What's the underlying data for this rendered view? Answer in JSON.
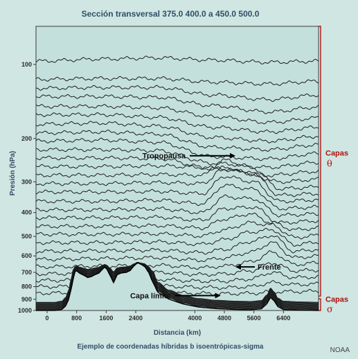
{
  "chart_data": {
    "type": "line",
    "title": "Sección transversal 375.0 400.0 a 450.0 500.0",
    "xlabel": "Distancia (km)",
    "ylabel": "Presión (hPa)",
    "xlim": [
      -300,
      7350
    ],
    "ylim": [
      1000,
      70
    ],
    "y_scale": "log",
    "x_ticks": [
      0,
      800,
      1600,
      2400,
      4000,
      4800,
      5600,
      6400
    ],
    "y_ticks": [
      100,
      200,
      300,
      400,
      500,
      600,
      700,
      800,
      900,
      1000
    ],
    "grid": false,
    "caption": "Ejemplo de coordenadas híbridas b isoentrópicas-sigma",
    "credit": "NOAA",
    "annotations": [
      {
        "text": "Tropopausa",
        "x": 3750,
        "y": 235
      },
      {
        "text": "Frente",
        "x": 5700,
        "y": 665
      },
      {
        "text": "Capa límite",
        "x": 3350,
        "y": 870
      }
    ],
    "layer_brackets": [
      {
        "label": "Capas",
        "symbol": "θ",
        "p_top": 70,
        "p_bottom": 885
      },
      {
        "label": "Capas",
        "symbol": "σ",
        "p_top": 885,
        "p_bottom": 1000
      }
    ],
    "series": [
      {
        "x": [
          -300,
          1500,
          3000,
          4500,
          6000,
          7350
        ],
        "values": [
          97,
          95,
          94,
          96,
          98,
          97
        ]
      },
      {
        "x": [
          -300,
          1500,
          3000,
          4500,
          6000,
          7350
        ],
        "values": [
          115,
          114,
          114,
          118,
          120,
          117
        ]
      },
      {
        "x": [
          -300,
          1500,
          3000,
          4500,
          6000,
          7350
        ],
        "values": [
          125,
          124,
          124,
          133,
          139,
          133
        ]
      },
      {
        "x": [
          -300,
          1500,
          3000,
          4500,
          6000,
          7350
        ],
        "values": [
          135,
          135,
          136,
          147,
          156,
          149
        ]
      },
      {
        "x": [
          -300,
          1500,
          3000,
          4500,
          6000,
          7350
        ],
        "values": [
          148,
          148,
          150,
          163,
          172,
          165
        ]
      },
      {
        "x": [
          -300,
          1500,
          3000,
          4500,
          6000,
          7350
        ],
        "values": [
          160,
          160,
          164,
          180,
          188,
          180
        ]
      },
      {
        "x": [
          -300,
          1500,
          3000,
          4500,
          6000,
          7350
        ],
        "values": [
          175,
          173,
          178,
          198,
          205,
          196
        ]
      },
      {
        "x": [
          -300,
          1500,
          3000,
          4500,
          6000,
          7350
        ],
        "values": [
          190,
          188,
          192,
          217,
          222,
          212
        ]
      },
      {
        "x": [
          -300,
          1500,
          3000,
          4500,
          6000,
          7350
        ],
        "values": [
          205,
          203,
          207,
          237,
          242,
          230
        ]
      },
      {
        "x": [
          -300,
          1500,
          3000,
          4500,
          6000,
          7350
        ],
        "values": [
          222,
          222,
          224,
          252,
          262,
          250
        ]
      },
      {
        "x": [
          -300,
          1500,
          3000,
          4500,
          6000,
          7350
        ],
        "values": [
          240,
          240,
          241,
          265,
          282,
          272
        ]
      },
      {
        "x": [
          -300,
          1500,
          3000,
          4200,
          5200,
          6300,
          7350
        ],
        "values": [
          260,
          260,
          258,
          262,
          270,
          300,
          293
        ]
      },
      {
        "x": [
          -300,
          1500,
          3000,
          4200,
          4800,
          5600,
          6300,
          7350
        ],
        "values": [
          282,
          282,
          280,
          282,
          245,
          265,
          320,
          315
        ]
      },
      {
        "x": [
          -300,
          1500,
          3000,
          4200,
          4800,
          5600,
          6300,
          7350
        ],
        "values": [
          305,
          305,
          302,
          305,
          262,
          280,
          340,
          335
        ]
      },
      {
        "x": [
          -300,
          1500,
          3000,
          4200,
          4800,
          5600,
          6300,
          7350
        ],
        "values": [
          330,
          330,
          328,
          335,
          285,
          300,
          360,
          355
        ]
      },
      {
        "x": [
          -300,
          1500,
          3000,
          4200,
          4800,
          5600,
          6300,
          7350
        ],
        "values": [
          360,
          360,
          356,
          368,
          310,
          322,
          385,
          380
        ]
      },
      {
        "x": [
          -300,
          1500,
          3000,
          4200,
          4800,
          5600,
          6300,
          7350
        ],
        "values": [
          390,
          390,
          386,
          400,
          345,
          352,
          410,
          405
        ]
      },
      {
        "x": [
          -300,
          1500,
          3000,
          4200,
          4800,
          5600,
          6300,
          7350
        ],
        "values": [
          420,
          420,
          418,
          430,
          385,
          380,
          440,
          432
        ]
      },
      {
        "x": [
          -300,
          1500,
          3000,
          4200,
          4800,
          5500,
          6100,
          6700,
          7350
        ],
        "values": [
          455,
          455,
          452,
          462,
          425,
          405,
          440,
          470,
          462
        ]
      },
      {
        "x": [
          -300,
          1500,
          3000,
          4200,
          4800,
          5500,
          6100,
          6700,
          7350
        ],
        "values": [
          490,
          490,
          488,
          498,
          470,
          440,
          450,
          505,
          495
        ]
      },
      {
        "x": [
          -300,
          1500,
          3000,
          4200,
          4800,
          5500,
          6100,
          6700,
          7350
        ],
        "values": [
          530,
          530,
          526,
          538,
          515,
          480,
          470,
          540,
          528
        ]
      },
      {
        "x": [
          -300,
          1500,
          3000,
          4200,
          4800,
          5500,
          6100,
          6700,
          7350
        ],
        "values": [
          575,
          572,
          568,
          582,
          565,
          525,
          495,
          575,
          565
        ]
      },
      {
        "x": [
          -300,
          1500,
          3000,
          4200,
          4800,
          5500,
          6100,
          6700,
          7350
        ],
        "values": [
          620,
          615,
          610,
          625,
          612,
          580,
          530,
          610,
          600
        ]
      },
      {
        "x": [
          -300,
          1500,
          3000,
          4200,
          4800,
          5500,
          6100,
          6700,
          7350
        ],
        "values": [
          665,
          660,
          655,
          670,
          660,
          635,
          580,
          650,
          640
        ]
      },
      {
        "x": [
          -300,
          1500,
          3000,
          4200,
          4800,
          5500,
          6100,
          6700,
          7350
        ],
        "values": [
          710,
          705,
          700,
          715,
          710,
          690,
          640,
          690,
          685
        ]
      },
      {
        "x": [
          -300,
          1500,
          3000,
          4200,
          4800,
          5500,
          6100,
          6700,
          7350
        ],
        "values": [
          755,
          752,
          748,
          760,
          760,
          745,
          700,
          735,
          730
        ]
      },
      {
        "x": [
          -300,
          1500,
          3000,
          4200,
          4800,
          5500,
          6100,
          6700,
          7350
        ],
        "values": [
          800,
          798,
          795,
          805,
          808,
          800,
          770,
          785,
          780
        ]
      },
      {
        "x": [
          -300,
          1500,
          3000,
          4200,
          4800,
          5500,
          6100,
          6700,
          7350
        ],
        "values": [
          850,
          848,
          845,
          852,
          855,
          852,
          840,
          838,
          835
        ]
      }
    ],
    "terrain": {
      "x": [
        -300,
        200,
        400,
        500,
        580,
        650,
        720,
        760,
        800,
        880,
        1000,
        1100,
        1200,
        1300,
        1400,
        1500,
        1560,
        1620,
        1700,
        1800,
        1900,
        2000,
        2150,
        2250,
        2350,
        2450,
        2550,
        2650,
        2750,
        2850,
        3000,
        3300,
        3700,
        4100,
        4600,
        5100,
        5500,
        5800,
        5950,
        6050,
        6150,
        6250,
        6400,
        6800,
        7350
      ],
      "values": [
        1000,
        1000,
        990,
        960,
        905,
        820,
        730,
        695,
        690,
        705,
        720,
        735,
        728,
        715,
        705,
        680,
        667,
        680,
        718,
        770,
        715,
        705,
        700,
        688,
        660,
        640,
        650,
        665,
        700,
        760,
        842,
        900,
        942,
        968,
        983,
        990,
        993,
        985,
        940,
        885,
        915,
        965,
        990,
        996,
        1000
      ]
    }
  }
}
